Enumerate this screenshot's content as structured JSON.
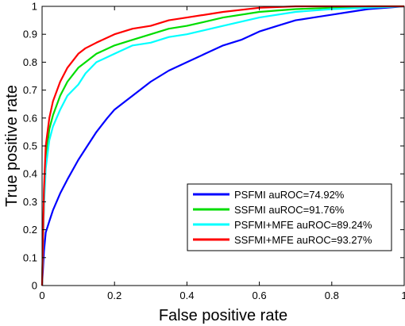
{
  "chart_data": {
    "type": "line",
    "title": "",
    "xlabel": "False positive rate",
    "ylabel": "True positive rate",
    "xlim": [
      0,
      1
    ],
    "ylim": [
      0,
      1
    ],
    "xticks": [
      0,
      0.2,
      0.4,
      0.6,
      0.8,
      1
    ],
    "yticks": [
      0,
      0.1,
      0.2,
      0.3,
      0.4,
      0.5,
      0.6,
      0.7,
      0.8,
      0.9,
      1
    ],
    "xtick_labels": [
      "0",
      "0.2",
      "0.4",
      "0.6",
      "0.8",
      "1"
    ],
    "ytick_labels": [
      "0",
      "0.1",
      "0.2",
      "0.3",
      "0.4",
      "0.5",
      "0.6",
      "0.7",
      "0.8",
      "0.9",
      "1"
    ],
    "grid": false,
    "legend_position": "lower-right",
    "series": [
      {
        "name": "PSFMI auROC=74.92%",
        "color": "#0000ff",
        "x": [
          0,
          0.005,
          0.01,
          0.02,
          0.03,
          0.05,
          0.07,
          0.1,
          0.12,
          0.15,
          0.18,
          0.2,
          0.25,
          0.3,
          0.35,
          0.4,
          0.45,
          0.5,
          0.55,
          0.6,
          0.65,
          0.7,
          0.75,
          0.8,
          0.85,
          0.9,
          0.95,
          1
        ],
        "y": [
          0,
          0.12,
          0.19,
          0.23,
          0.27,
          0.33,
          0.38,
          0.45,
          0.49,
          0.55,
          0.6,
          0.63,
          0.68,
          0.73,
          0.77,
          0.8,
          0.83,
          0.86,
          0.88,
          0.91,
          0.93,
          0.95,
          0.96,
          0.97,
          0.98,
          0.99,
          0.995,
          1
        ]
      },
      {
        "name": "SSFMI auROC=91.76%",
        "color": "#00dd00",
        "x": [
          0,
          0.005,
          0.01,
          0.02,
          0.03,
          0.05,
          0.07,
          0.1,
          0.12,
          0.15,
          0.2,
          0.25,
          0.3,
          0.35,
          0.4,
          0.5,
          0.6,
          0.7,
          0.8,
          0.9,
          1
        ],
        "y": [
          0,
          0.3,
          0.45,
          0.56,
          0.61,
          0.68,
          0.73,
          0.78,
          0.8,
          0.83,
          0.86,
          0.88,
          0.9,
          0.92,
          0.93,
          0.96,
          0.98,
          0.99,
          0.995,
          1,
          1
        ]
      },
      {
        "name": "PSFMI+MFE auROC=89.24%",
        "color": "#00ffff",
        "x": [
          0,
          0.005,
          0.01,
          0.02,
          0.03,
          0.05,
          0.07,
          0.1,
          0.12,
          0.15,
          0.2,
          0.25,
          0.3,
          0.35,
          0.4,
          0.5,
          0.6,
          0.7,
          0.8,
          0.9,
          1
        ],
        "y": [
          0,
          0.28,
          0.42,
          0.52,
          0.57,
          0.63,
          0.68,
          0.72,
          0.76,
          0.8,
          0.83,
          0.86,
          0.87,
          0.89,
          0.9,
          0.93,
          0.96,
          0.98,
          0.99,
          0.995,
          1
        ]
      },
      {
        "name": "SSFMI+MFE auROC=93.27%",
        "color": "#ff0000",
        "x": [
          0,
          0.005,
          0.01,
          0.02,
          0.03,
          0.05,
          0.07,
          0.1,
          0.12,
          0.15,
          0.2,
          0.25,
          0.3,
          0.35,
          0.4,
          0.5,
          0.6,
          0.7,
          0.8,
          0.9,
          1
        ],
        "y": [
          0,
          0.34,
          0.5,
          0.6,
          0.66,
          0.73,
          0.78,
          0.83,
          0.85,
          0.87,
          0.9,
          0.92,
          0.93,
          0.95,
          0.96,
          0.98,
          0.995,
          1,
          1,
          1,
          1
        ]
      }
    ]
  }
}
